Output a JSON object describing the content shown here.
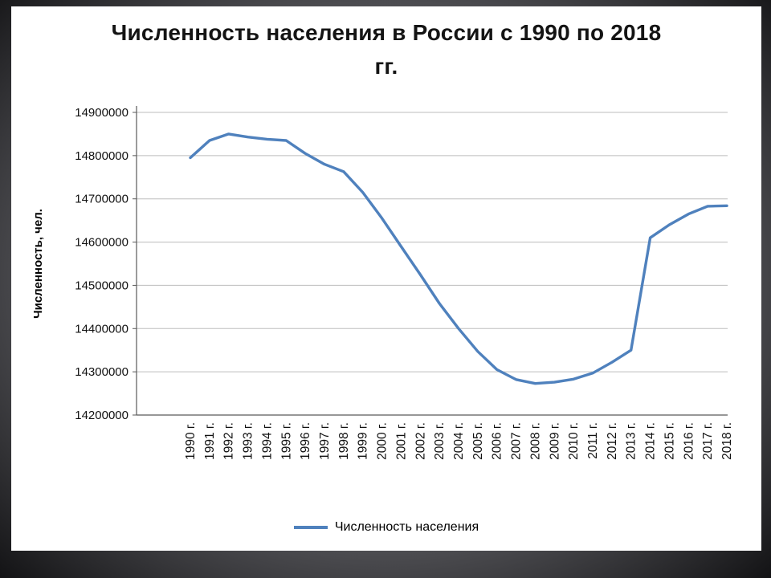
{
  "slide": {
    "title_line1": "Численность населения в России с 1990 по 2018",
    "title_line2": "гг."
  },
  "chart_data": {
    "type": "line",
    "title": "Численность населения в России с 1990 по 2018 гг.",
    "xlabel": "",
    "ylabel": "Численность, чел.",
    "ylim": [
      14200000,
      14900000
    ],
    "yticks": [
      14200000,
      14300000,
      14400000,
      14500000,
      14600000,
      14700000,
      14800000,
      14900000
    ],
    "grid": true,
    "legend": {
      "position": "bottom",
      "label": "Численность населения"
    },
    "categories": [
      "1990 г.",
      "1991 г.",
      "1992 г.",
      "1993 г.",
      "1994 г.",
      "1995 г.",
      "1996 г.",
      "1997 г.",
      "1998 г.",
      "1999 г.",
      "2000 г.",
      "2001 г.",
      "2002 г.",
      "2003 г.",
      "2004 г.",
      "2005 г.",
      "2006 г.",
      "2007 г.",
      "2008 г.",
      "2009 г.",
      "2010 г.",
      "2011 г.",
      "2012 г.",
      "2013 г.",
      "2014 г.",
      "2015 г.",
      "2016 г.",
      "2017 г.",
      "2018 г."
    ],
    "series": [
      {
        "name": "Численность населения",
        "color": "#4F81BD",
        "values": [
          14795000,
          14835000,
          14850000,
          14843000,
          14838000,
          14835000,
          14805000,
          14780000,
          14763000,
          14715000,
          14655000,
          14590000,
          14525000,
          14458000,
          14400000,
          14347000,
          14305000,
          14282000,
          14273000,
          14276000,
          14283000,
          14297000,
          14322000,
          14350000,
          14610000,
          14640000,
          14665000,
          14683000,
          14684000
        ]
      }
    ]
  }
}
